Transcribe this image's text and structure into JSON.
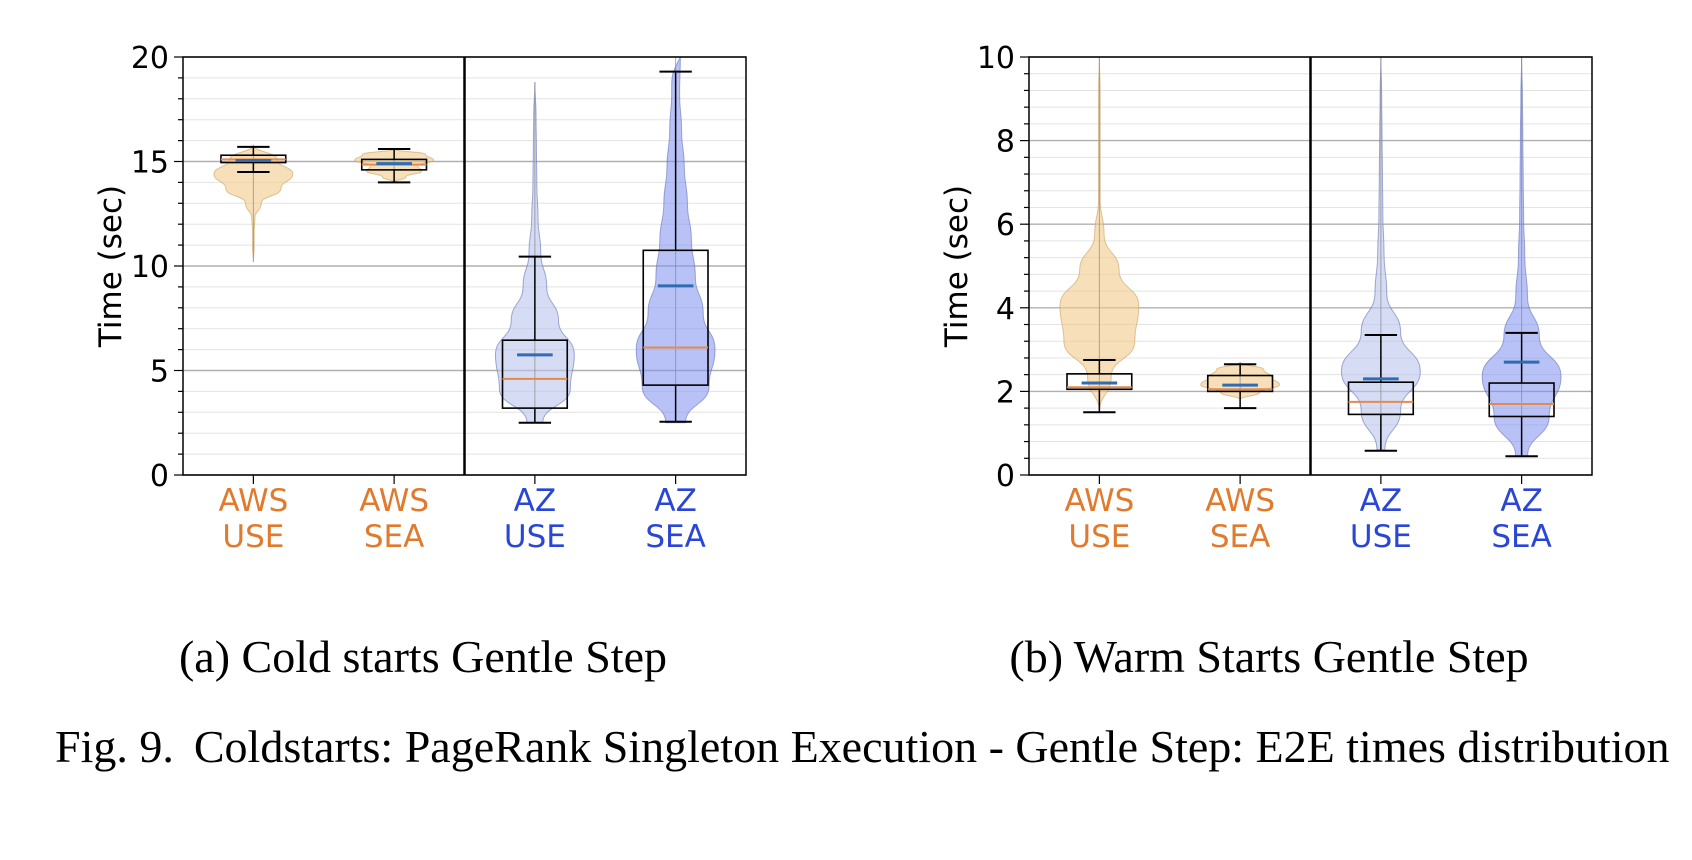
{
  "figure": {
    "label": "Fig. 9.",
    "text": "Coldstarts: PageRank Singleton Execution - Gentle Step: E2E times distribution"
  },
  "colors": {
    "aws_label": "#e07b2e",
    "az_label": "#2a46d6",
    "aws_violin": "#f2cc8a",
    "az_use_violin": "#b9c5ec",
    "az_sea_violin": "#7f8ff0",
    "median": "#e58a4a",
    "mean": "#2e6db3"
  },
  "chart_data": [
    {
      "type": "violin+box",
      "caption": "(a) Cold starts Gentle Step",
      "ylabel": "Time (sec)",
      "ylim": [
        0,
        20
      ],
      "yticks": [
        0,
        5,
        10,
        15,
        20
      ],
      "grid": true,
      "categories": [
        {
          "line1": "AWS",
          "line2": "USE",
          "provider": "aws",
          "violin_min": 10.2,
          "violin_max": 15.8,
          "violin_widths": [
            0.0,
            0.02,
            0.02,
            0.04,
            0.2,
            0.7,
            1.0,
            0.6,
            0.0
          ],
          "whisker_low": 14.5,
          "q1": 14.95,
          "median": 15.1,
          "mean": 15.05,
          "q3": 15.3,
          "whisker_high": 15.7
        },
        {
          "line1": "AWS",
          "line2": "SEA",
          "provider": "aws",
          "violin_min": 14.0,
          "violin_max": 15.6,
          "violin_widths": [
            0.0,
            0.3,
            0.7,
            0.6,
            1.0,
            0.8,
            0.0
          ],
          "whisker_low": 14.0,
          "q1": 14.6,
          "median": 14.85,
          "mean": 14.9,
          "q3": 15.1,
          "whisker_high": 15.6
        },
        {
          "line1": "AZ",
          "line2": "USE",
          "provider": "az",
          "violin_min": 2.5,
          "violin_max": 18.8,
          "violin_widths": [
            0.2,
            0.9,
            1.0,
            0.6,
            0.3,
            0.15,
            0.08,
            0.05,
            0.04,
            0.03,
            0.0
          ],
          "whisker_low": 2.5,
          "q1": 3.2,
          "median": 4.6,
          "mean": 5.75,
          "q3": 6.45,
          "whisker_high": 10.45
        },
        {
          "line1": "AZ",
          "line2": "SEA",
          "provider": "az",
          "violin_min": 2.5,
          "violin_max": 20.0,
          "violin_widths": [
            0.25,
            0.85,
            1.0,
            0.7,
            0.5,
            0.4,
            0.3,
            0.22,
            0.15,
            0.1,
            0.12
          ],
          "whisker_low": 2.55,
          "q1": 4.3,
          "median": 6.1,
          "mean": 9.05,
          "q3": 10.75,
          "whisker_high": 19.3
        }
      ]
    },
    {
      "type": "violin+box",
      "caption": "(b) Warm Starts Gentle Step",
      "ylabel": "Time (sec)",
      "ylim": [
        0,
        10
      ],
      "yticks": [
        0,
        2,
        4,
        6,
        8,
        10
      ],
      "grid": true,
      "categories": [
        {
          "line1": "AWS",
          "line2": "USE",
          "provider": "aws",
          "violin_min": 1.5,
          "violin_max": 10.0,
          "violin_widths": [
            0.0,
            0.3,
            0.9,
            1.0,
            0.5,
            0.12,
            0.02,
            0.02,
            0.02,
            0.02,
            0.0
          ],
          "whisker_low": 1.5,
          "q1": 2.05,
          "median": 2.1,
          "mean": 2.2,
          "q3": 2.42,
          "whisker_high": 2.75
        },
        {
          "line1": "AWS",
          "line2": "SEA",
          "provider": "aws",
          "violin_min": 1.8,
          "violin_max": 2.7,
          "violin_widths": [
            0.0,
            0.5,
            1.0,
            0.8,
            0.6,
            0.0
          ],
          "whisker_low": 1.6,
          "q1": 2.0,
          "median": 2.05,
          "mean": 2.15,
          "q3": 2.38,
          "whisker_high": 2.65
        },
        {
          "line1": "AZ",
          "line2": "USE",
          "provider": "az",
          "violin_min": 0.6,
          "violin_max": 10.0,
          "violin_widths": [
            0.1,
            0.5,
            1.0,
            0.5,
            0.15,
            0.08,
            0.05,
            0.04,
            0.03,
            0.02,
            0.0
          ],
          "whisker_low": 0.58,
          "q1": 1.45,
          "median": 1.75,
          "mean": 2.3,
          "q3": 2.22,
          "whisker_high": 3.35
        },
        {
          "line1": "AZ",
          "line2": "SEA",
          "provider": "az",
          "violin_min": 0.45,
          "violin_max": 10.0,
          "violin_widths": [
            0.15,
            0.7,
            1.0,
            0.45,
            0.15,
            0.08,
            0.05,
            0.04,
            0.03,
            0.02,
            0.0
          ],
          "whisker_low": 0.45,
          "q1": 1.4,
          "median": 1.7,
          "mean": 2.7,
          "q3": 2.2,
          "whisker_high": 3.4
        }
      ]
    }
  ]
}
